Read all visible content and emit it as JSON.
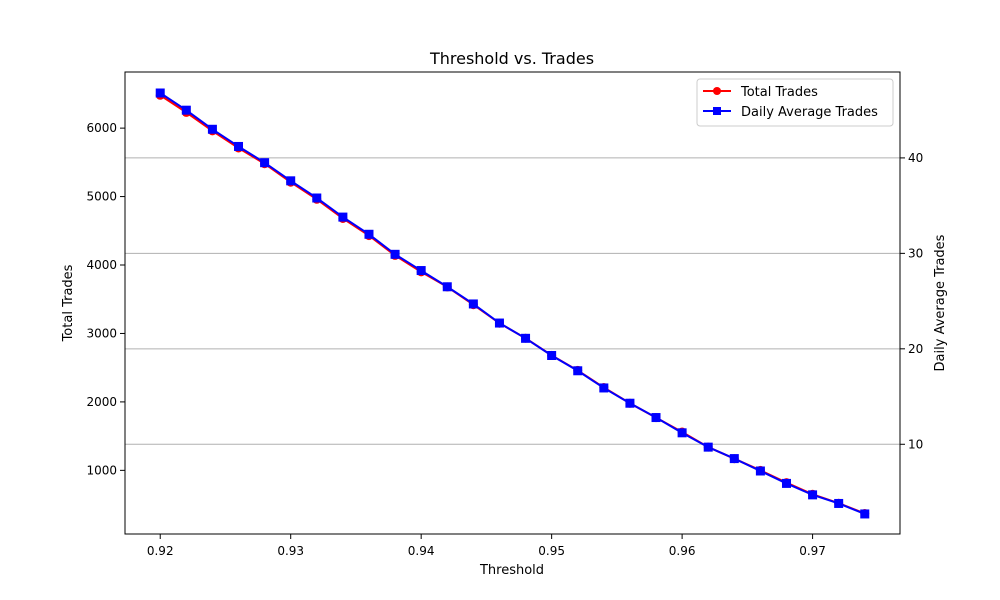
{
  "chart_data": {
    "type": "line",
    "title": "Threshold vs. Trades",
    "xlabel": "Threshold",
    "ylabel": "Total Trades",
    "y2label": "Daily Average Trades",
    "xlim": [
      0.9173,
      0.9767
    ],
    "ylim": [
      70,
      6820
    ],
    "y2lim": [
      0.6,
      49.0
    ],
    "x_ticks": [
      "0.92",
      "0.93",
      "0.94",
      "0.95",
      "0.96",
      "0.97"
    ],
    "y_ticks": [
      "1000",
      "2000",
      "3000",
      "4000",
      "5000",
      "6000"
    ],
    "y2_ticks": [
      "10",
      "20",
      "30",
      "40"
    ],
    "grid": "right-axis horizontal lines",
    "legend_position": "top-right",
    "x": [
      0.92,
      0.922,
      0.924,
      0.926,
      0.928,
      0.93,
      0.932,
      0.934,
      0.936,
      0.938,
      0.94,
      0.942,
      0.944,
      0.946,
      0.948,
      0.95,
      0.952,
      0.954,
      0.956,
      0.958,
      0.96,
      0.962,
      0.964,
      0.966,
      0.968,
      0.97,
      0.972,
      0.974
    ],
    "series": [
      {
        "name": "Total Trades",
        "axis": "left",
        "color": "#ff0000",
        "marker": "circle",
        "values": [
          6480,
          6230,
          5960,
          5710,
          5480,
          5210,
          4960,
          4680,
          4430,
          4140,
          3900,
          3680,
          3420,
          3150,
          2930,
          2680,
          2460,
          2210,
          1980,
          1770,
          1560,
          1340,
          1170,
          1000,
          820,
          650,
          520,
          370
        ]
      },
      {
        "name": "Daily Average Trades",
        "axis": "right",
        "color": "#0000ff",
        "marker": "square",
        "values": [
          46.8,
          45.0,
          43.0,
          41.2,
          39.5,
          37.6,
          35.8,
          33.8,
          32.0,
          29.9,
          28.2,
          26.5,
          24.7,
          22.7,
          21.1,
          19.3,
          17.7,
          15.9,
          14.3,
          12.8,
          11.2,
          9.7,
          8.5,
          7.2,
          5.9,
          4.7,
          3.8,
          2.7
        ]
      }
    ]
  }
}
